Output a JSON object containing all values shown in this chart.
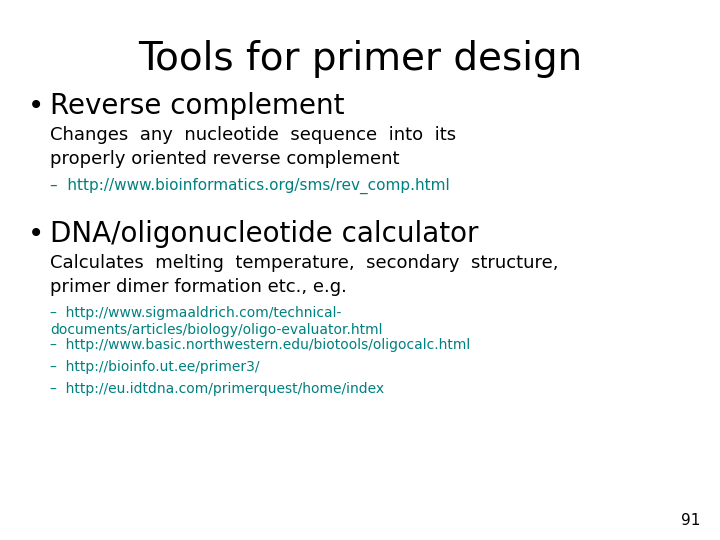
{
  "title": "Tools for primer design",
  "background_color": "#ffffff",
  "title_color": "#000000",
  "title_fontsize": 28,
  "bullet_color": "#000000",
  "link_color": "#008080",
  "body_color": "#000000",
  "page_number": "91",
  "bullets": [
    {
      "header": "Reverse complement",
      "header_fontsize": 20,
      "body": "Changes  any  nucleotide  sequence  into  its\nproperly oriented reverse complement",
      "body_fontsize": 13,
      "sub_links": [
        "http://www.bioinformatics.org/sms/rev_comp.html"
      ],
      "link_fontsize": 11
    },
    {
      "header": "DNA/oligonucleotide calculator",
      "header_fontsize": 20,
      "body": "Calculates  melting  temperature,  secondary  structure,\nprimer dimer formation etc., e.g.",
      "body_fontsize": 13,
      "sub_links": [
        "http://www.sigmaaldrich.com/technical-\ndocuments/articles/biology/oligo-evaluator.html",
        "http://www.basic.northwestern.edu/biotools/oligocalc.html",
        "http://bioinfo.ut.ee/primer3/",
        "http://eu.idtdna.com/primerquest/home/index"
      ],
      "link_fontsize": 10
    }
  ]
}
